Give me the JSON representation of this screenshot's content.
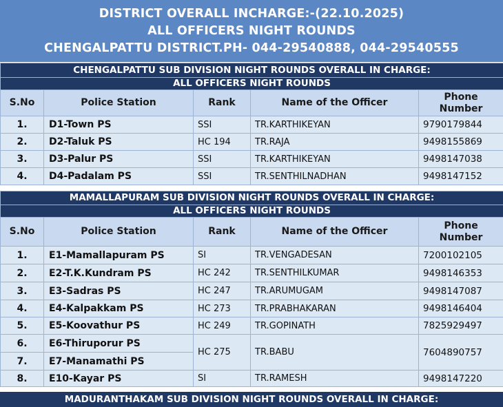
{
  "header": {
    "line1": "DISTRICT OVERALL INCHARGE:-(22.10.2025)",
    "line2": "ALL OFFICERS NIGHT ROUNDS",
    "line3": "CHENGALPATTU DISTRICT.PH- 044-29540888, 044-29540555"
  },
  "columns": {
    "sno": "S.No",
    "station": "Police Station",
    "rank": "Rank",
    "officer": "Name of the Officer",
    "phone_line1": "Phone",
    "phone_line2": "Number"
  },
  "section1": {
    "title1": "CHENGALPATTU SUB DIVISION NIGHT ROUNDS OVERALL IN CHARGE:",
    "title2": "ALL OFFICERS NIGHT ROUNDS",
    "rows": [
      {
        "sno": "1.",
        "station": "D1-Town PS",
        "rank": "SSI",
        "officer": "TR.KARTHIKEYAN",
        "phone": "9790179844"
      },
      {
        "sno": "2.",
        "station": "D2-Taluk PS",
        "rank": "HC 194",
        "officer": "TR.RAJA",
        "phone": "9498155869"
      },
      {
        "sno": "3.",
        "station": "D3-Palur PS",
        "rank": "SSI",
        "officer": "TR.KARTHIKEYAN",
        "phone": "9498147038"
      },
      {
        "sno": "4.",
        "station": "D4-Padalam PS",
        "rank": "SSI",
        "officer": "TR.SENTHILNADHAN",
        "phone": "9498147152"
      }
    ]
  },
  "section2": {
    "title1": "MAMALLAPURAM SUB DIVISION NIGHT ROUNDS OVERALL IN CHARGE:",
    "title2": "ALL OFFICERS NIGHT ROUNDS",
    "rows": [
      {
        "sno": "1.",
        "station": "E1-Mamallapuram PS",
        "rank": "SI",
        "officer": "TR.VENGADESAN",
        "phone": "7200102105"
      },
      {
        "sno": "2.",
        "station": "E2-T.K.Kundram PS",
        "rank": "HC 242",
        "officer": "TR.SENTHILKUMAR",
        "phone": "9498146353"
      },
      {
        "sno": "3.",
        "station": "E3-Sadras PS",
        "rank": "HC 247",
        "officer": "TR.ARUMUGAM",
        "phone": "9498147087"
      },
      {
        "sno": "4.",
        "station": "E4-Kalpakkam PS",
        "rank": "HC 273",
        "officer": "TR.PRABHAKARAN",
        "phone": "9498146404"
      },
      {
        "sno": "5.",
        "station": "E5-Koovathur PS",
        "rank": "HC 249",
        "officer": "TR.GOPINATH",
        "phone": "7825929497"
      },
      {
        "sno": "6.",
        "station": "E6-Thiruporur PS",
        "rank": "HC 275",
        "officer": "TR.BABU",
        "phone": "7604890757"
      },
      {
        "sno": "7.",
        "station": "E7-Manamathi PS"
      },
      {
        "sno": "8.",
        "station": "E10-Kayar PS",
        "rank": "SI",
        "officer": "TR.RAMESH",
        "phone": "9498147220"
      }
    ]
  },
  "section3": {
    "title1": "MADURANTHAKAM SUB DIVISION NIGHT ROUNDS OVERALL IN CHARGE:"
  }
}
